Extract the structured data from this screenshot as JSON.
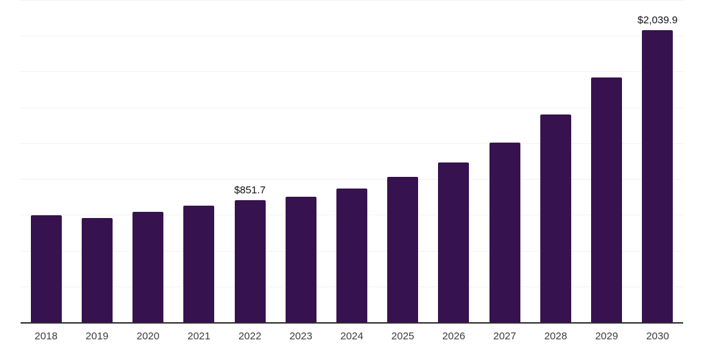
{
  "chart_data": {
    "type": "bar",
    "title": "",
    "xlabel": "",
    "ylabel": "",
    "categories": [
      "2018",
      "2019",
      "2020",
      "2021",
      "2022",
      "2023",
      "2024",
      "2025",
      "2026",
      "2027",
      "2028",
      "2029",
      "2030"
    ],
    "values": [
      748,
      727,
      772,
      816,
      851.7,
      878,
      935,
      1017,
      1117,
      1256,
      1452,
      1711,
      2039.9
    ],
    "data_labels": [
      null,
      null,
      null,
      null,
      "$851.7",
      null,
      null,
      null,
      null,
      null,
      null,
      null,
      "$2,039.9"
    ],
    "ylim": [
      0,
      2250
    ],
    "gridline_step": 250,
    "grid": true,
    "legend": false,
    "colors": {
      "bar": "#36124E",
      "axis_line": "#2d2d2d",
      "gridline": "#f1f1f1",
      "tick_label": "#3c3c3c",
      "data_label": "#111111",
      "background": "#ffffff"
    }
  }
}
